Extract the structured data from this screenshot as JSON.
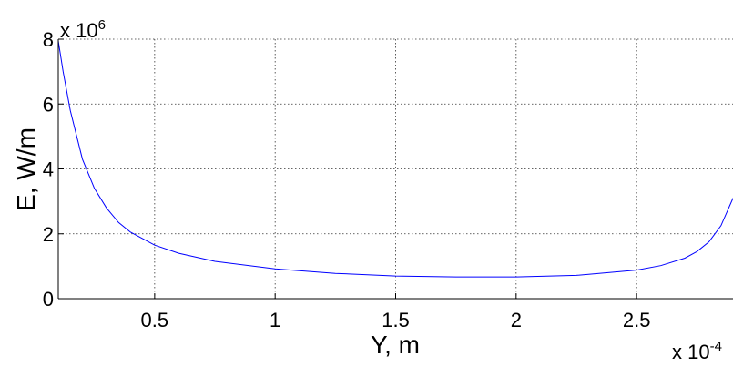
{
  "chart_data": {
    "type": "line",
    "title": "",
    "xlabel": "Y, m",
    "ylabel": "E,  W/m",
    "x_multiplier": "x 10",
    "x_multiplier_exp": "-4",
    "y_multiplier": "x 10",
    "y_multiplier_exp": "6",
    "xlim": [
      0.1,
      2.9
    ],
    "ylim": [
      0,
      8
    ],
    "x_ticks": [
      0.5,
      1,
      1.5,
      2,
      2.5
    ],
    "x_tick_labels": [
      "0.5",
      "1",
      "1.5",
      "2",
      "2.5"
    ],
    "y_ticks": [
      0,
      2,
      4,
      6,
      8
    ],
    "y_tick_labels": [
      "0",
      "2",
      "4",
      "6",
      "8"
    ],
    "grid": true,
    "line_color": "#0000ff",
    "series": [
      {
        "x": [
          0.1,
          0.12,
          0.15,
          0.2,
          0.25,
          0.3,
          0.35,
          0.4,
          0.5,
          0.6,
          0.75,
          1.0,
          1.25,
          1.5,
          1.75,
          2.0,
          2.25,
          2.5,
          2.6,
          2.7,
          2.75,
          2.8,
          2.85,
          2.9
        ],
        "y": [
          7.95,
          7.0,
          5.8,
          4.3,
          3.4,
          2.8,
          2.35,
          2.05,
          1.65,
          1.4,
          1.15,
          0.92,
          0.78,
          0.7,
          0.67,
          0.67,
          0.72,
          0.88,
          1.02,
          1.25,
          1.45,
          1.75,
          2.25,
          3.1
        ]
      }
    ]
  }
}
